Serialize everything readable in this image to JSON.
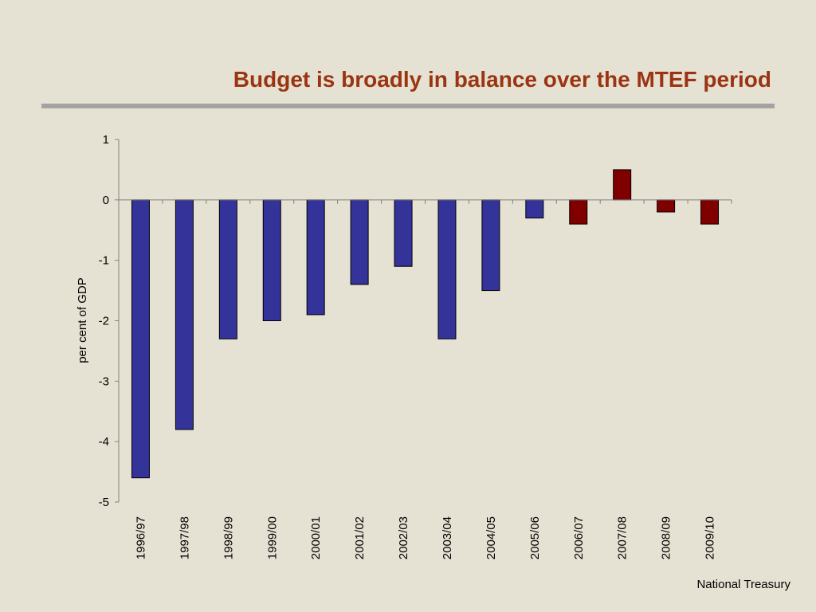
{
  "slide": {
    "title": "Budget is broadly in balance over the MTEF period",
    "footer": "National Treasury"
  },
  "colors": {
    "background": "#e6e2d3",
    "title": "#9a3412",
    "rule": "#a3a3a3",
    "historical_bar": "#333399",
    "projected_bar": "#800000"
  },
  "chart_data": {
    "type": "bar",
    "title": "",
    "xlabel": "",
    "ylabel": "per cent of GDP",
    "ylim": [
      -5,
      1
    ],
    "yticks": [
      1,
      0,
      -1,
      -2,
      -3,
      -4,
      -5
    ],
    "grid": false,
    "legend": "none",
    "categories": [
      "1996/97",
      "1997/98",
      "1998/99",
      "1999/00",
      "2000/01",
      "2001/02",
      "2002/03",
      "2003/04",
      "2004/05",
      "2005/06",
      "2006/07",
      "2007/08",
      "2008/09",
      "2009/10"
    ],
    "values": [
      -4.6,
      -3.8,
      -2.3,
      -2.0,
      -1.9,
      -1.4,
      -1.1,
      -2.3,
      -1.5,
      -0.3,
      -0.4,
      0.5,
      -0.2,
      -0.4
    ],
    "bar_colors": [
      "#333399",
      "#333399",
      "#333399",
      "#333399",
      "#333399",
      "#333399",
      "#333399",
      "#333399",
      "#333399",
      "#333399",
      "#800000",
      "#800000",
      "#800000",
      "#800000"
    ]
  }
}
